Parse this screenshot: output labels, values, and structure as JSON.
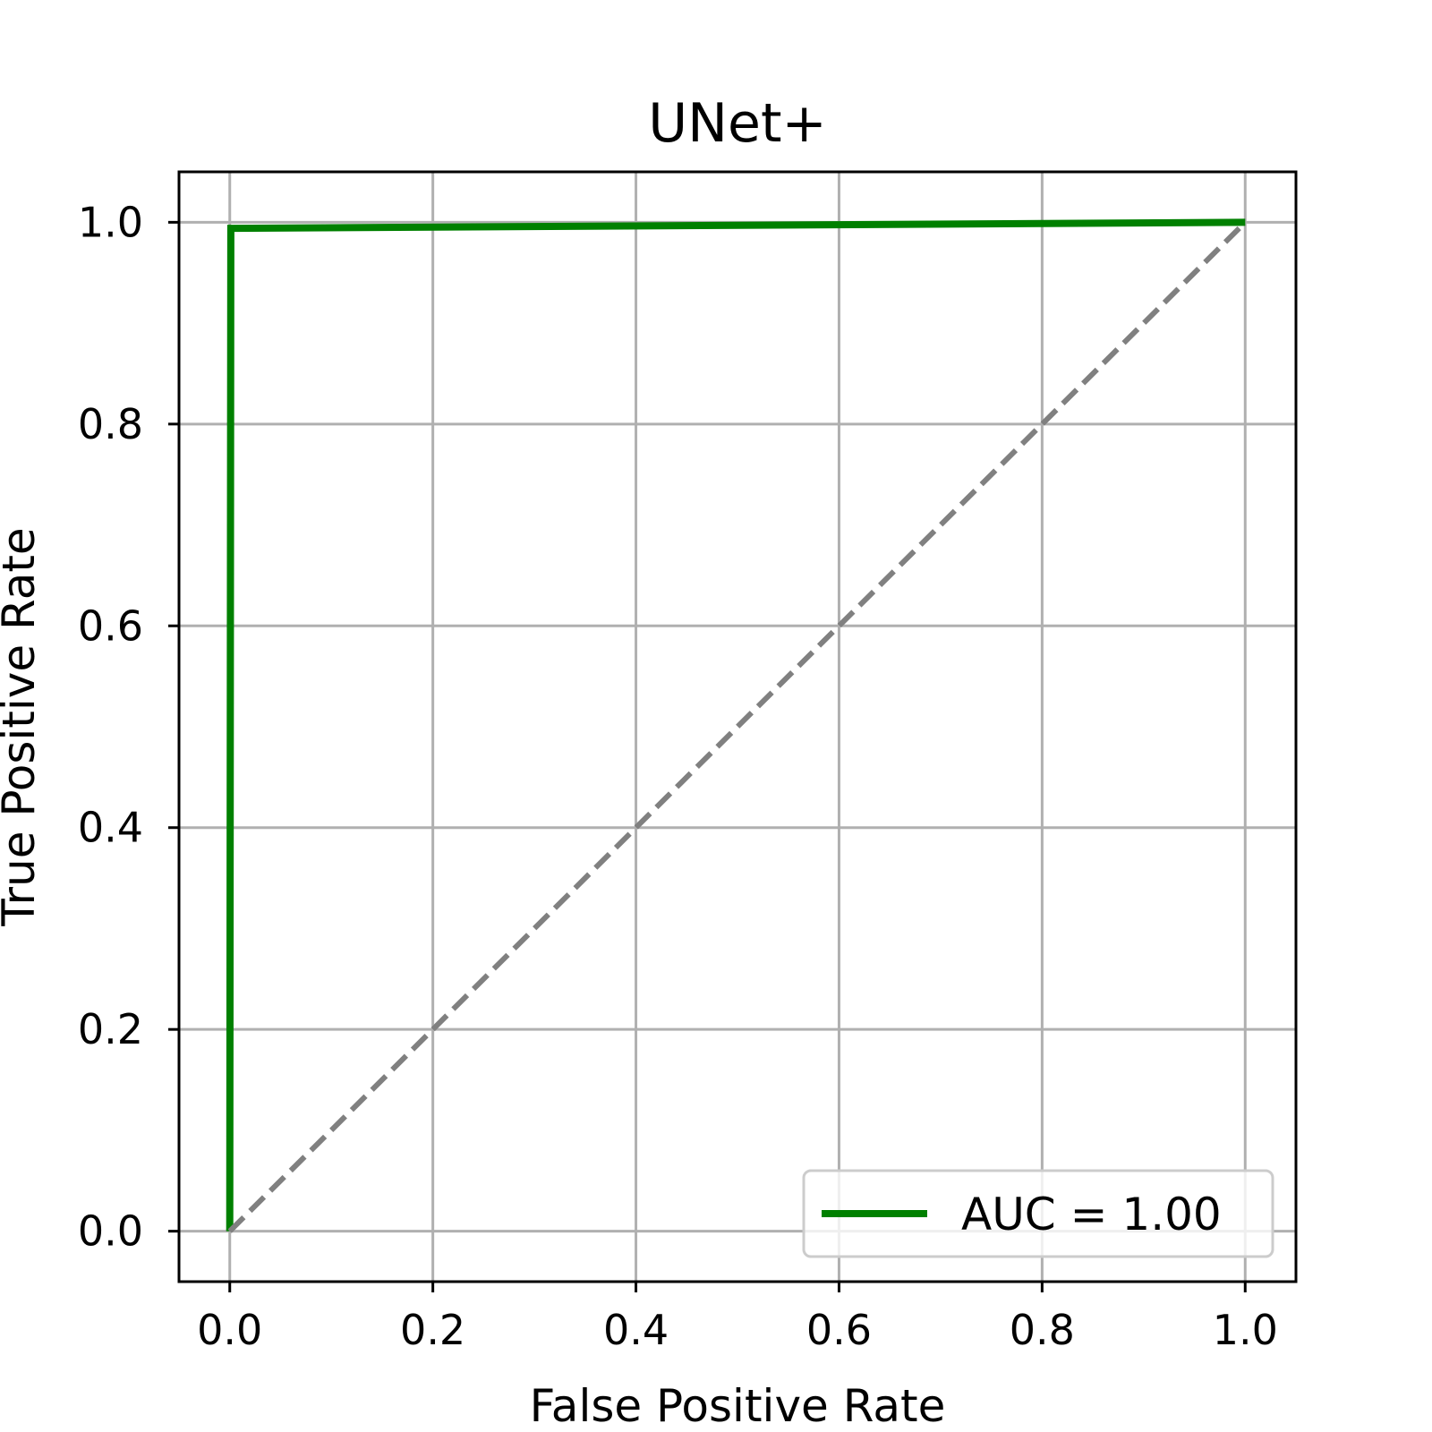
{
  "chart_data": {
    "type": "line",
    "title": "UNet+",
    "xlabel": "False Positive Rate",
    "ylabel": "True Positive Rate",
    "xlim": [
      -0.05,
      1.05
    ],
    "ylim": [
      -0.05,
      1.05
    ],
    "xticks": [
      0.0,
      0.2,
      0.4,
      0.6,
      0.8,
      1.0
    ],
    "yticks": [
      0.0,
      0.2,
      0.4,
      0.6,
      0.8,
      1.0
    ],
    "xtick_labels": [
      "0.0",
      "0.2",
      "0.4",
      "0.6",
      "0.8",
      "1.0"
    ],
    "ytick_labels": [
      "0.0",
      "0.2",
      "0.4",
      "0.6",
      "0.8",
      "1.0"
    ],
    "grid": true,
    "legend_position": "lower-right",
    "series": [
      {
        "name": "AUC = 1.00",
        "color": "#008000",
        "style": "solid",
        "x": [
          0.0,
          0.001,
          0.003,
          1.0
        ],
        "y": [
          0.0,
          0.994,
          0.994,
          1.0
        ]
      },
      {
        "name": "",
        "color": "#808080",
        "style": "dashed",
        "x": [
          0.0,
          1.0
        ],
        "y": [
          0.0,
          1.0
        ]
      }
    ]
  }
}
